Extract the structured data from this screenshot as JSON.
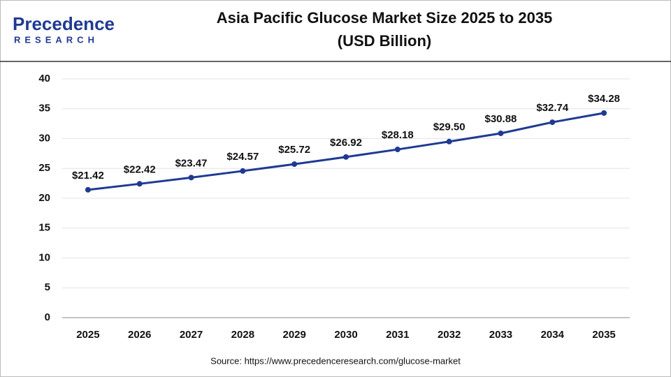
{
  "logo": {
    "name": "Precedence",
    "tagline": "RESEARCH"
  },
  "chart_data": {
    "type": "line",
    "title": "Asia Pacific Glucose Market Size 2025 to 2035",
    "subtitle": "(USD Billion)",
    "source": "Source: https://www.precedenceresearch.com/glucose-market",
    "categories": [
      "2025",
      "2026",
      "2027",
      "2028",
      "2029",
      "2030",
      "2031",
      "2032",
      "2033",
      "2034",
      "2035"
    ],
    "values": [
      21.42,
      22.42,
      23.47,
      24.57,
      25.72,
      26.92,
      28.18,
      29.5,
      30.88,
      32.74,
      34.28
    ],
    "value_labels": [
      "$21.42",
      "$22.42",
      "$23.47",
      "$24.57",
      "$25.72",
      "$26.92",
      "$28.18",
      "$29.50",
      "$30.88",
      "$32.74",
      "$34.28"
    ],
    "color": "#1f3a93",
    "ylim": [
      0,
      40
    ],
    "yticks": [
      0,
      5,
      10,
      15,
      20,
      25,
      30,
      35,
      40
    ],
    "grid": true
  }
}
